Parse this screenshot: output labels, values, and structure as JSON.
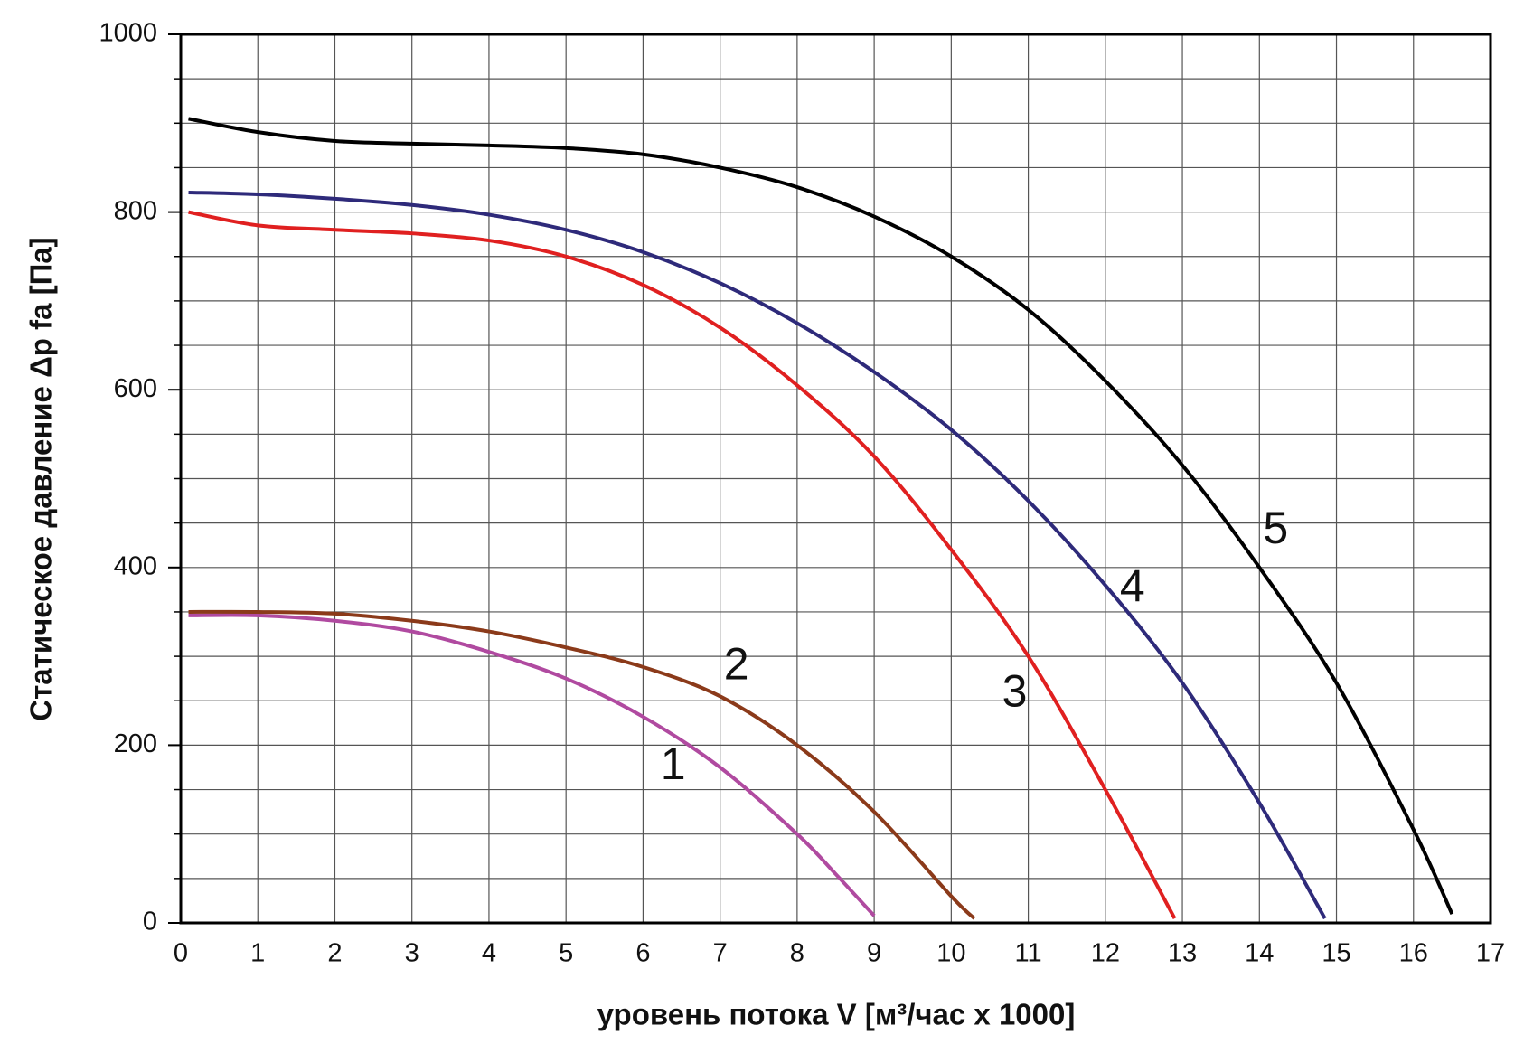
{
  "chart_data": {
    "type": "line",
    "x_label": "уровень потока  V [м³/час x 1000]",
    "y_label": "Статическое давление  Δp fa [Па]",
    "xlim": [
      0,
      17
    ],
    "xticks": [
      0,
      1,
      2,
      3,
      4,
      5,
      6,
      7,
      8,
      9,
      10,
      11,
      12,
      13,
      14,
      15,
      16,
      17
    ],
    "ylim": [
      0,
      1000
    ],
    "yticks": [
      0,
      200,
      400,
      600,
      800,
      1000
    ],
    "y_minor_ticks": [
      50,
      100,
      150,
      250,
      300,
      350,
      450,
      500,
      550,
      650,
      700,
      750,
      850,
      900,
      950
    ],
    "grid": true,
    "series": [
      {
        "name": "1",
        "color": "#b04aa0",
        "x": [
          0.1,
          1,
          2,
          3,
          4,
          5,
          6,
          7,
          8,
          8.5,
          9
        ],
        "values": [
          346,
          346,
          340,
          328,
          305,
          275,
          232,
          175,
          100,
          55,
          8
        ]
      },
      {
        "name": "2",
        "color": "#8b3a1a",
        "x": [
          0.1,
          1,
          2,
          3,
          4,
          5,
          6,
          7,
          8,
          9,
          10,
          10.3
        ],
        "values": [
          350,
          350,
          348,
          340,
          328,
          310,
          288,
          255,
          200,
          125,
          30,
          5
        ]
      },
      {
        "name": "3",
        "color": "#e02020",
        "x": [
          0.1,
          1,
          2,
          3,
          4,
          5,
          6,
          7,
          8,
          9,
          10,
          11,
          12,
          12.9
        ],
        "values": [
          800,
          785,
          780,
          776,
          768,
          750,
          718,
          670,
          605,
          525,
          420,
          300,
          150,
          5
        ]
      },
      {
        "name": "4",
        "color": "#2e2a7a",
        "x": [
          0.1,
          1,
          2,
          3,
          4,
          5,
          6,
          7,
          8,
          9,
          10,
          11,
          12,
          13,
          14,
          14.85
        ],
        "values": [
          822,
          820,
          815,
          808,
          797,
          780,
          755,
          720,
          675,
          620,
          555,
          475,
          380,
          270,
          135,
          5
        ]
      },
      {
        "name": "5",
        "color": "#000000",
        "x": [
          0.1,
          1,
          2,
          3,
          4,
          5,
          6,
          7,
          8,
          9,
          10,
          11,
          12,
          13,
          14,
          15,
          16,
          16.5
        ],
        "values": [
          905,
          890,
          880,
          877,
          875,
          872,
          865,
          850,
          828,
          795,
          750,
          690,
          610,
          515,
          400,
          270,
          105,
          10
        ]
      }
    ]
  }
}
